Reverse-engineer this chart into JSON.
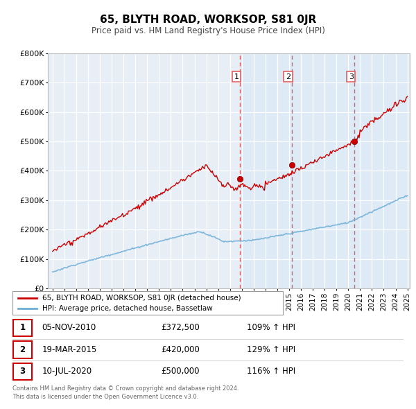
{
  "title": "65, BLYTH ROAD, WORKSOP, S81 0JR",
  "subtitle": "Price paid vs. HM Land Registry's House Price Index (HPI)",
  "ylim": [
    0,
    800000
  ],
  "yticks": [
    0,
    100000,
    200000,
    300000,
    400000,
    500000,
    600000,
    700000,
    800000
  ],
  "ytick_labels": [
    "£0",
    "£100K",
    "£200K",
    "£300K",
    "£400K",
    "£500K",
    "£600K",
    "£700K",
    "£800K"
  ],
  "hpi_color": "#6baed6",
  "price_color": "#cc0000",
  "dashed_line_color": "#e06060",
  "plot_bg_left": "#e8eef5",
  "plot_bg_right": "#dce7f3",
  "shade_color": "#d0dff0",
  "transactions": [
    {
      "num": 1,
      "date": "05-NOV-2010",
      "price": 372500,
      "x": 2010.85
    },
    {
      "num": 2,
      "date": "19-MAR-2015",
      "price": 420000,
      "x": 2015.21
    },
    {
      "num": 3,
      "date": "10-JUL-2020",
      "price": 500000,
      "x": 2020.53
    }
  ],
  "legend_house_label": "65, BLYTH ROAD, WORKSOP, S81 0JR (detached house)",
  "legend_hpi_label": "HPI: Average price, detached house, Bassetlaw",
  "footer": "Contains HM Land Registry data © Crown copyright and database right 2024.\nThis data is licensed under the Open Government Licence v3.0.",
  "table_rows": [
    {
      "num": 1,
      "date": "05-NOV-2010",
      "price": "£372,500",
      "hpi": "109% ↑ HPI"
    },
    {
      "num": 2,
      "date": "19-MAR-2015",
      "price": "£420,000",
      "hpi": "129% ↑ HPI"
    },
    {
      "num": 3,
      "date": "10-JUL-2020",
      "price": "£500,000",
      "hpi": "116% ↑ HPI"
    }
  ],
  "xlim_left": 1994.6,
  "xlim_right": 2025.2
}
